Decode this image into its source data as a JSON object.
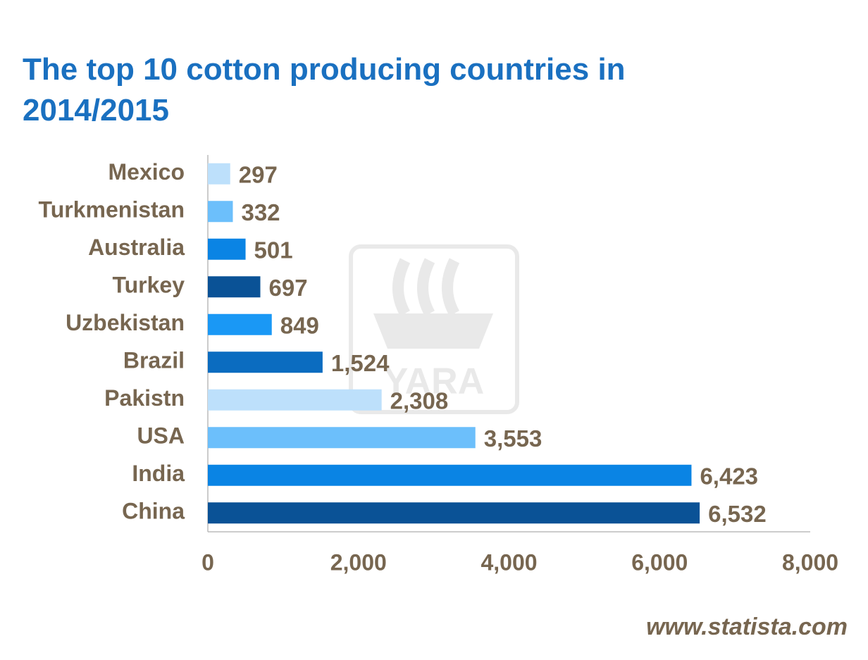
{
  "chart_data": {
    "type": "bar",
    "orientation": "horizontal",
    "title": "The top 10 cotton producing countries in 2014/2015",
    "categories": [
      "Mexico",
      "Turkmenistan",
      "Australia",
      "Turkey",
      "Uzbekistan",
      "Brazil",
      "Pakistn",
      "USA",
      "India",
      "China"
    ],
    "values": [
      297,
      332,
      501,
      697,
      849,
      1524,
      2308,
      3553,
      6423,
      6532
    ],
    "value_labels": [
      "297",
      "332",
      "501",
      "697",
      "849",
      "1,524",
      "2,308",
      "3,553",
      "6,423",
      "6,532"
    ],
    "colors": [
      "#bde0fb",
      "#6cbffb",
      "#0a84e4",
      "#0a5296",
      "#1a98f5",
      "#0b6cc0",
      "#bde0fb",
      "#6cbffb",
      "#0a84e4",
      "#0a5296"
    ],
    "xlim": [
      0,
      8000
    ],
    "xticks": [
      0,
      {
        "value": 2000,
        "label": "2,000"
      },
      {
        "value": 4000,
        "label": "4,000"
      },
      {
        "value": 6000,
        "label": "6,000"
      },
      {
        "value": 8000,
        "label": "8,000"
      }
    ],
    "grid": false,
    "watermark": "YARA",
    "source": "www.statista.com"
  }
}
